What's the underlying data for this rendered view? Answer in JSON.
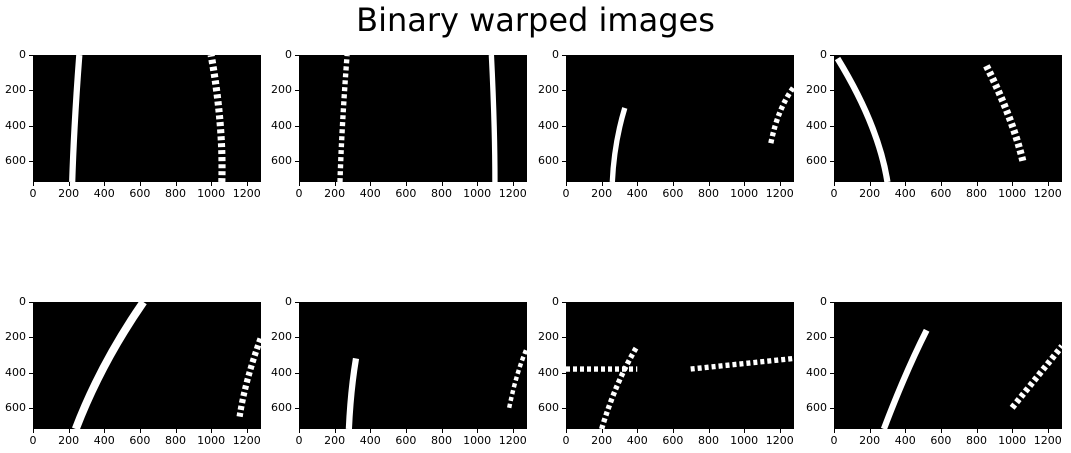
{
  "figure": {
    "title": "Binary warped images"
  },
  "axes": {
    "x_ticks": [
      "0",
      "200",
      "400",
      "600",
      "800",
      "1000",
      "1200"
    ],
    "y_ticks": [
      "0",
      "200",
      "400",
      "600"
    ],
    "x_tick_values": [
      0,
      200,
      400,
      600,
      800,
      1000,
      1200
    ],
    "y_tick_values": [
      0,
      200,
      400,
      600
    ],
    "x_range": [
      0,
      1280
    ],
    "y_range": [
      0,
      720
    ]
  },
  "panels": [
    {
      "name": "panel-1",
      "lanes": [
        {
          "pts": [
            [
              220,
              720
            ],
            [
              230,
              400
            ],
            [
              260,
              0
            ]
          ],
          "w": 35
        },
        {
          "pts": [
            [
              1060,
              720
            ],
            [
              1070,
              400
            ],
            [
              1000,
              0
            ]
          ],
          "w": 40,
          "dashed": true
        }
      ]
    },
    {
      "name": "panel-2",
      "lanes": [
        {
          "pts": [
            [
              230,
              720
            ],
            [
              240,
              400
            ],
            [
              270,
              0
            ]
          ],
          "w": 30,
          "dashed": true
        },
        {
          "pts": [
            [
              1100,
              720
            ],
            [
              1100,
              400
            ],
            [
              1080,
              0
            ]
          ],
          "w": 30
        }
      ]
    },
    {
      "name": "panel-3",
      "lanes": [
        {
          "pts": [
            [
              260,
              720
            ],
            [
              270,
              500
            ],
            [
              330,
              300
            ]
          ],
          "w": 30
        },
        {
          "pts": [
            [
              1150,
              500
            ],
            [
              1190,
              300
            ],
            [
              1280,
              180
            ]
          ],
          "w": 30,
          "dashed": true
        }
      ]
    },
    {
      "name": "panel-4",
      "lanes": [
        {
          "pts": [
            [
              300,
              720
            ],
            [
              250,
              400
            ],
            [
              20,
              20
            ]
          ],
          "w": 35
        },
        {
          "pts": [
            [
              1060,
              600
            ],
            [
              1000,
              350
            ],
            [
              850,
              50
            ]
          ],
          "w": 40,
          "dashed": true
        }
      ]
    },
    {
      "name": "panel-5",
      "lanes": [
        {
          "pts": [
            [
              240,
              720
            ],
            [
              380,
              350
            ],
            [
              620,
              0
            ]
          ],
          "w": 45
        },
        {
          "pts": [
            [
              1160,
              650
            ],
            [
              1190,
              450
            ],
            [
              1280,
              200
            ]
          ],
          "w": 35,
          "dashed": true
        }
      ]
    },
    {
      "name": "panel-6",
      "lanes": [
        {
          "pts": [
            [
              280,
              720
            ],
            [
              290,
              500
            ],
            [
              320,
              320
            ]
          ],
          "w": 35
        },
        {
          "pts": [
            [
              1180,
              600
            ],
            [
              1220,
              400
            ],
            [
              1280,
              260
            ]
          ],
          "w": 25,
          "dashed": true
        }
      ]
    },
    {
      "name": "panel-7",
      "lanes": [
        {
          "pts": [
            [
              200,
              720
            ],
            [
              280,
              450
            ],
            [
              400,
              250
            ]
          ],
          "w": 30,
          "dashed": true
        },
        {
          "pts": [
            [
              700,
              380
            ],
            [
              1280,
              320
            ]
          ],
          "w": 30,
          "dashed": true
        },
        {
          "pts": [
            [
              0,
              380
            ],
            [
              400,
              380
            ]
          ],
          "w": 30,
          "dashed": true
        }
      ]
    },
    {
      "name": "panel-8",
      "lanes": [
        {
          "pts": [
            [
              280,
              720
            ],
            [
              400,
              400
            ],
            [
              520,
              160
            ]
          ],
          "w": 35
        },
        {
          "pts": [
            [
              1000,
              600
            ],
            [
              1160,
              400
            ],
            [
              1280,
              250
            ]
          ],
          "w": 35,
          "dashed": true
        }
      ]
    }
  ]
}
